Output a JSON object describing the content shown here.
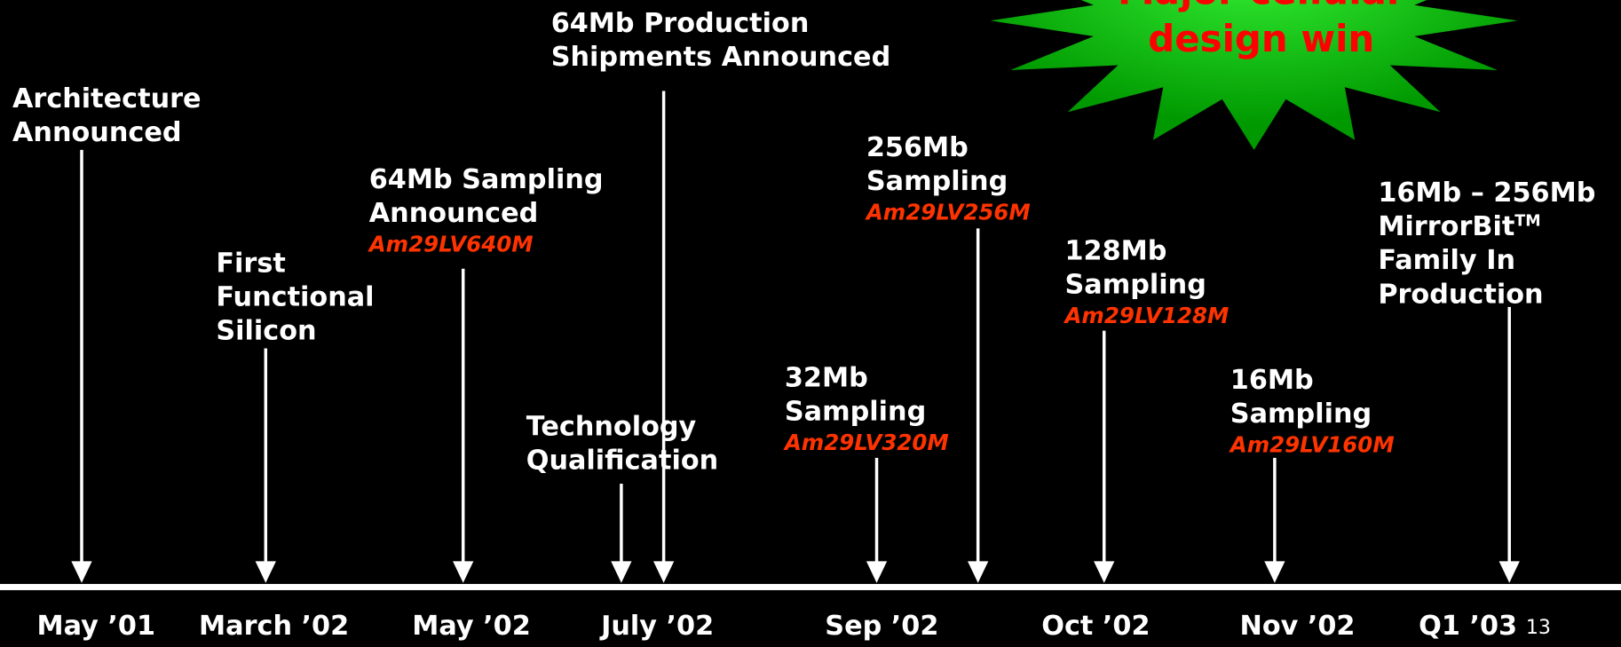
{
  "events": [
    {
      "lines": [
        "Architecture",
        "Announced"
      ]
    },
    {
      "lines": [
        "First",
        "Functional",
        "Silicon"
      ]
    },
    {
      "lines": [
        "64Mb Sampling",
        "Announced"
      ],
      "part": "Am29LV640M"
    },
    {
      "lines": [
        "Technology",
        "Qualification"
      ]
    },
    {
      "lines": [
        "64Mb Production",
        "Shipments Announced"
      ]
    },
    {
      "lines": [
        "32Mb",
        "Sampling"
      ],
      "part": "Am29LV320M"
    },
    {
      "lines": [
        "256Mb",
        "Sampling"
      ],
      "part": "Am29LV256M"
    },
    {
      "lines": [
        "128Mb",
        "Sampling"
      ],
      "part": "Am29LV128M"
    },
    {
      "lines": [
        "16Mb",
        "Sampling"
      ],
      "part": "Am29LV160M"
    },
    {
      "lines": [
        "16Mb – 256Mb",
        "MirrorBit",
        "Family In",
        "Production"
      ],
      "superscript": "TM"
    }
  ],
  "dates": [
    "May ’01",
    "March ’02",
    "May ’02",
    "July ’02",
    "Sep ’02",
    "Oct ’02",
    "Nov ’02",
    "Q1 ’03"
  ],
  "callout": [
    "Major cellular",
    "design win"
  ],
  "page_number": "13"
}
